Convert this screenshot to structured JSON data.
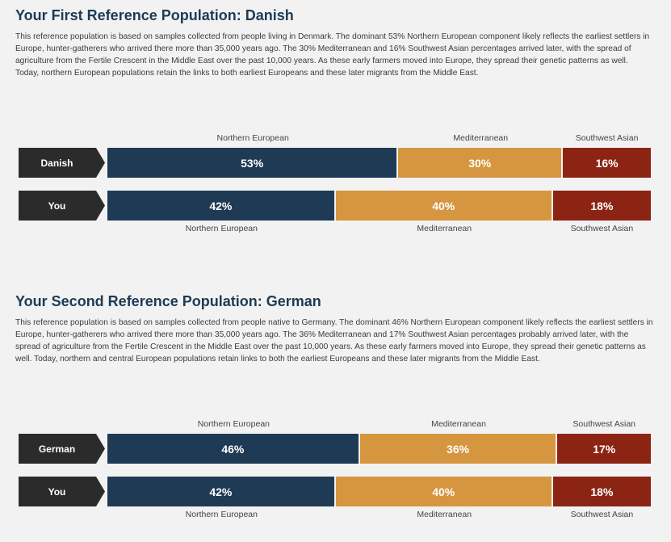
{
  "colors": {
    "northern": "#1f3a55",
    "mediterranean": "#d69640",
    "southwest": "#8c2414"
  },
  "sections": [
    {
      "title": "Your First Reference Population: Danish",
      "description": "This reference population is based on samples collected from people living in Denmark. The dominant 53% Northern European component likely reflects the earliest settlers in Europe, hunter-gatherers who arrived there more than 35,000 years ago. The 30% Mediterranean and 16% Southwest Asian percentages arrived later, with the spread of agriculture from the Fertile Crescent in the Middle East over the past 10,000 years.  As these early farmers moved into Europe, they spread their genetic patterns as well.  Today, northern European populations retain the links to both earliest Europeans and these later migrants from the Middle East.",
      "reference": {
        "label": "Danish",
        "segments": [
          {
            "name": "Northern European",
            "value": 53,
            "display": "53%"
          },
          {
            "name": "Mediterranean",
            "value": 30,
            "display": "30%"
          },
          {
            "name": "Southwest Asian",
            "value": 16,
            "display": "16%"
          }
        ]
      },
      "you": {
        "label": "You",
        "segments": [
          {
            "name": "Northern European",
            "value": 42,
            "display": "42%"
          },
          {
            "name": "Mediterranean",
            "value": 40,
            "display": "40%"
          },
          {
            "name": "Southwest Asian",
            "value": 18,
            "display": "18%"
          }
        ]
      }
    },
    {
      "title": "Your Second Reference Population: German",
      "description": "This reference population is based on samples collected from people native to Germany. The dominant 46% Northern European component likely reflects the earliest settlers in Europe, hunter-gatherers who arrived there more than 35,000 years ago. The 36% Mediterranean and 17% Southwest Asian percentages probably arrived later, with the spread of agriculture from the Fertile Crescent in the Middle East over the past 10,000 years. As these early farmers moved into Europe, they spread their genetic patterns as well. Today, northern and central European populations retain links to both the earliest Europeans and these later migrants from the Middle East.",
      "reference": {
        "label": "German",
        "segments": [
          {
            "name": "Northern European",
            "value": 46,
            "display": "46%"
          },
          {
            "name": "Mediterranean",
            "value": 36,
            "display": "36%"
          },
          {
            "name": "Southwest Asian",
            "value": 17,
            "display": "17%"
          }
        ]
      },
      "you": {
        "label": "You",
        "segments": [
          {
            "name": "Northern European",
            "value": 42,
            "display": "42%"
          },
          {
            "name": "Mediterranean",
            "value": 40,
            "display": "40%"
          },
          {
            "name": "Southwest Asian",
            "value": 18,
            "display": "18%"
          }
        ]
      }
    }
  ]
}
